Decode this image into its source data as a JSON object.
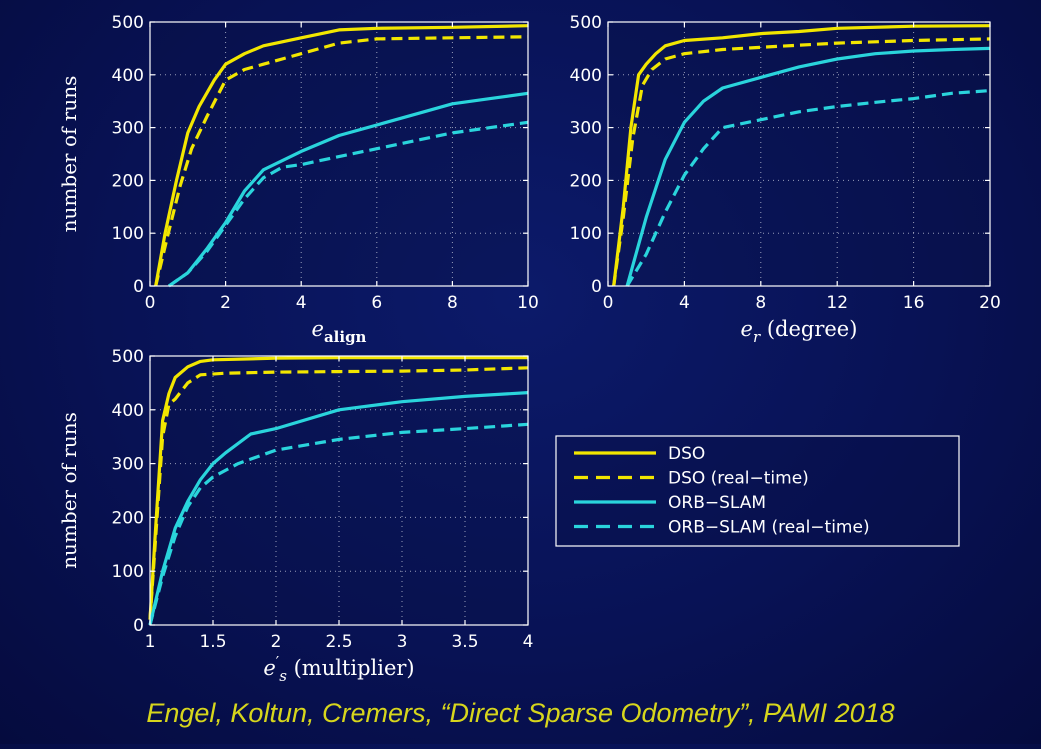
{
  "citation": "Engel, Koltun, Cremers, “Direct Sparse Odometry”, PAMI 2018",
  "colors": {
    "dso": "#f2e600",
    "orb": "#2ad4dc",
    "axis": "#ffffff",
    "grid": "#c8ccdc"
  },
  "legend": {
    "entries": [
      {
        "label": "DSO",
        "series": "DSO",
        "dashed": false
      },
      {
        "label": "DSO (real−time)",
        "series": "DSO (real-time)",
        "dashed": true
      },
      {
        "label": "ORB−SLAM",
        "series": "ORB-SLAM",
        "dashed": false
      },
      {
        "label": "ORB−SLAM (real−time)",
        "series": "ORB-SLAM (real-time)",
        "dashed": true
      }
    ]
  },
  "chart_data": [
    {
      "type": "line",
      "xlabel": "e_align",
      "ylabel": "number of runs",
      "xlim": [
        0,
        10
      ],
      "ylim": [
        0,
        500
      ],
      "xticks": [
        "0",
        "2",
        "4",
        "6",
        "8",
        "10"
      ],
      "yticks": [
        "0",
        "100",
        "200",
        "300",
        "400",
        "500"
      ],
      "grid": true,
      "series": [
        {
          "name": "DSO",
          "x": [
            0.15,
            0.4,
            0.7,
            1,
            1.3,
            1.7,
            2,
            2.5,
            3,
            4,
            5,
            6,
            8,
            10
          ],
          "values": [
            0,
            100,
            200,
            290,
            340,
            390,
            420,
            440,
            455,
            470,
            485,
            488,
            490,
            493
          ]
        },
        {
          "name": "DSO (real-time)",
          "x": [
            0.15,
            0.45,
            0.8,
            1.1,
            1.5,
            2,
            2.5,
            3,
            4,
            5,
            6,
            8,
            10
          ],
          "values": [
            0,
            90,
            190,
            260,
            320,
            390,
            410,
            420,
            440,
            460,
            468,
            470,
            472
          ]
        },
        {
          "name": "ORB-SLAM",
          "x": [
            0.5,
            1,
            1.5,
            2,
            2.5,
            3,
            4,
            5,
            6,
            7,
            8,
            9,
            10
          ],
          "values": [
            0,
            25,
            70,
            120,
            180,
            220,
            255,
            285,
            305,
            325,
            345,
            355,
            365
          ]
        },
        {
          "name": "ORB-SLAM (real-time)",
          "x": [
            0.5,
            1,
            1.5,
            2,
            2.5,
            3,
            3.5,
            4,
            5,
            6,
            7,
            8,
            9,
            10
          ],
          "values": [
            0,
            25,
            65,
            115,
            165,
            205,
            225,
            230,
            245,
            260,
            275,
            290,
            300,
            310
          ]
        }
      ]
    },
    {
      "type": "line",
      "xlabel": "e_r (degree)",
      "ylabel": "",
      "xlim": [
        0,
        20
      ],
      "ylim": [
        0,
        500
      ],
      "xticks": [
        "0",
        "4",
        "8",
        "12",
        "16",
        "20"
      ],
      "yticks": [
        "0",
        "100",
        "200",
        "300",
        "400",
        "500"
      ],
      "grid": true,
      "series": [
        {
          "name": "DSO",
          "x": [
            0.3,
            0.8,
            1.2,
            1.6,
            2,
            2.5,
            3,
            4,
            6,
            8,
            10,
            12,
            16,
            20
          ],
          "values": [
            0,
            150,
            300,
            400,
            420,
            440,
            455,
            465,
            470,
            478,
            482,
            488,
            492,
            493
          ]
        },
        {
          "name": "DSO (real-time)",
          "x": [
            0.3,
            0.8,
            1.3,
            1.8,
            2.3,
            3,
            4,
            6,
            8,
            10,
            12,
            16,
            20
          ],
          "values": [
            0,
            130,
            280,
            380,
            410,
            430,
            440,
            448,
            452,
            456,
            460,
            465,
            468
          ]
        },
        {
          "name": "ORB-SLAM",
          "x": [
            1,
            2,
            3,
            4,
            5,
            6,
            8,
            10,
            12,
            14,
            16,
            18,
            20
          ],
          "values": [
            0,
            130,
            240,
            310,
            350,
            375,
            395,
            415,
            430,
            440,
            445,
            448,
            450
          ]
        },
        {
          "name": "ORB-SLAM (real-time)",
          "x": [
            1,
            2,
            3,
            4,
            5,
            6,
            8,
            10,
            12,
            14,
            16,
            18,
            20
          ],
          "values": [
            0,
            60,
            140,
            210,
            260,
            300,
            315,
            330,
            340,
            348,
            355,
            365,
            370
          ]
        }
      ]
    },
    {
      "type": "line",
      "xlabel": "e'_s (multiplier)",
      "ylabel": "number of runs",
      "xlim": [
        1,
        4
      ],
      "ylim": [
        0,
        500
      ],
      "xticks": [
        "1",
        "1.5",
        "2",
        "2.5",
        "3",
        "3.5",
        "4"
      ],
      "yticks": [
        "0",
        "100",
        "200",
        "300",
        "400",
        "500"
      ],
      "grid": true,
      "series": [
        {
          "name": "DSO",
          "x": [
            1,
            1.05,
            1.1,
            1.15,
            1.2,
            1.3,
            1.4,
            1.5,
            2,
            2.5,
            3,
            4
          ],
          "values": [
            10,
            200,
            380,
            430,
            460,
            480,
            490,
            493,
            496,
            497,
            497,
            497
          ]
        },
        {
          "name": "DSO (real-time)",
          "x": [
            1,
            1.05,
            1.1,
            1.15,
            1.2,
            1.3,
            1.4,
            1.6,
            2,
            2.5,
            3,
            3.5,
            4
          ],
          "values": [
            10,
            180,
            350,
            410,
            420,
            450,
            465,
            468,
            470,
            471,
            472,
            474,
            478
          ]
        },
        {
          "name": "ORB-SLAM",
          "x": [
            1,
            1.1,
            1.2,
            1.3,
            1.4,
            1.5,
            1.6,
            1.8,
            2,
            2.5,
            3,
            3.5,
            4
          ],
          "values": [
            0,
            100,
            180,
            230,
            270,
            300,
            320,
            355,
            365,
            400,
            415,
            425,
            432
          ]
        },
        {
          "name": "ORB-SLAM (real-time)",
          "x": [
            1,
            1.1,
            1.2,
            1.3,
            1.4,
            1.5,
            1.7,
            2,
            2.5,
            3,
            3.5,
            4
          ],
          "values": [
            0,
            90,
            165,
            220,
            255,
            275,
            300,
            325,
            345,
            358,
            365,
            373
          ]
        }
      ]
    }
  ]
}
